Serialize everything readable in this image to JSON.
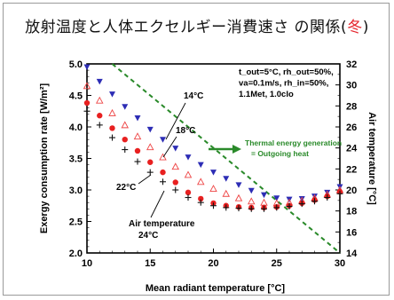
{
  "slide": {
    "title_main": "放射温度と人体エクセルギー消費速さ の関係(",
    "title_accent": "冬",
    "title_end": ")"
  },
  "chart_data": {
    "type": "scatter",
    "xlabel": "Mean radiant temperature  [°C]",
    "ylabel": "Exergy consumption rate  [W/m²]",
    "y2label": "Air temperature  [°C]",
    "xlim": [
      10,
      30
    ],
    "ylim": [
      2.0,
      5.0
    ],
    "y2lim": [
      14,
      32
    ],
    "xticks": [
      10,
      15,
      20,
      25,
      30
    ],
    "yticks": [
      "2.0",
      "2.5",
      "3.0",
      "3.5",
      "4.0",
      "4.5",
      "5.0"
    ],
    "y2ticks": [
      14,
      16,
      18,
      20,
      22,
      24,
      26,
      28,
      30,
      32
    ],
    "conditions": [
      "t_out=5°C, rh_out=50%,",
      "va=0.1m/s, rh_in=50%,",
      "1.1Met, 1.0clo"
    ],
    "arrow_text": [
      "Thermal energy generation",
      "= Outgoing heat"
    ],
    "series": [
      {
        "name": "14°C",
        "marker": "triangle-down",
        "color": "#2d2db5",
        "x": [
          10,
          11,
          12,
          13,
          14,
          15,
          16,
          17,
          18,
          19,
          20,
          21,
          22,
          23,
          24,
          25,
          26,
          27,
          28,
          29,
          30
        ],
        "y": [
          4.95,
          4.72,
          4.52,
          4.32,
          4.14,
          3.96,
          3.8,
          3.66,
          3.52,
          3.4,
          3.28,
          3.18,
          3.08,
          2.99,
          2.92,
          2.87,
          2.85,
          2.86,
          2.9,
          2.96,
          3.05
        ]
      },
      {
        "name": "18°C",
        "marker": "triangle-up-open",
        "color": "#ee4444",
        "x": [
          10,
          11,
          12,
          13,
          14,
          15,
          16,
          17,
          18,
          19,
          20,
          21,
          22,
          23,
          24,
          25,
          26,
          27,
          28,
          29,
          30
        ],
        "y": [
          4.65,
          4.42,
          4.22,
          4.03,
          3.85,
          3.68,
          3.52,
          3.37,
          3.24,
          3.13,
          3.02,
          2.94,
          2.87,
          2.82,
          2.8,
          2.79,
          2.8,
          2.83,
          2.87,
          2.93,
          3.0
        ]
      },
      {
        "name": "22°C",
        "marker": "circle",
        "color": "#e82020",
        "x": [
          10,
          11,
          12,
          13,
          14,
          15,
          16,
          17,
          18,
          19,
          20,
          21,
          22,
          23,
          24,
          25,
          26,
          27,
          28,
          29,
          30
        ],
        "y": [
          4.38,
          4.18,
          3.98,
          3.8,
          3.62,
          3.44,
          3.28,
          3.12,
          2.96,
          2.86,
          2.79,
          2.75,
          2.73,
          2.72,
          2.72,
          2.73,
          2.75,
          2.79,
          2.84,
          2.9,
          2.97
        ]
      },
      {
        "name": "24°C",
        "marker": "plus",
        "color": "#111111",
        "x": [
          10,
          11,
          12,
          13,
          14,
          15,
          16,
          17,
          18,
          19,
          20,
          21,
          22,
          23,
          24,
          25,
          26,
          27,
          28,
          29,
          30
        ],
        "y": [
          4.25,
          4.03,
          3.83,
          3.64,
          3.45,
          3.28,
          3.13,
          3.0,
          2.88,
          2.8,
          2.75,
          2.72,
          2.71,
          2.7,
          2.7,
          2.72,
          2.74,
          2.78,
          2.82,
          2.88,
          2.94
        ]
      }
    ],
    "annotations": [
      "14°C",
      "18°C",
      "22°C",
      "Air temperature",
      "24°C"
    ],
    "equality_line": {
      "style": "dashed",
      "color": "#2a8a2a",
      "x": [
        12,
        30
      ],
      "y": [
        5.0,
        2.0
      ]
    }
  }
}
